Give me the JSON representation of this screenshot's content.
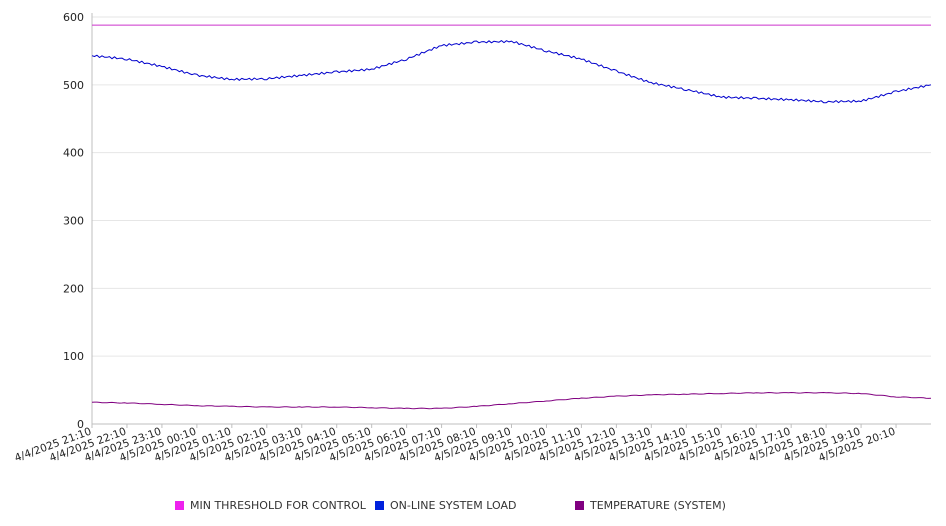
{
  "chart_data": {
    "type": "line",
    "title": "",
    "xlabel": "",
    "ylabel": "",
    "ylim": [
      0,
      600
    ],
    "y_ticks": [
      "0",
      "100",
      "200",
      "300",
      "400",
      "500",
      "600"
    ],
    "x_tick_labels": [
      "4/4/2025 21:10",
      "4/4/2025 22:10",
      "4/4/2025 23:10",
      "4/5/2025 00:10",
      "4/5/2025 01:10",
      "4/5/2025 02:10",
      "4/5/2025 03:10",
      "4/5/2025 04:10",
      "4/5/2025 05:10",
      "4/5/2025 06:10",
      "4/5/2025 07:10",
      "4/5/2025 08:10",
      "4/5/2025 09:10",
      "4/5/2025 10:10",
      "4/5/2025 11:10",
      "4/5/2025 12:10",
      "4/5/2025 13:10",
      "4/5/2025 14:10",
      "4/5/2025 15:10",
      "4/5/2025 16:10",
      "4/5/2025 17:10",
      "4/5/2025 18:10",
      "4/5/2025 19:10",
      "4/5/2025 20:10"
    ],
    "grid": true,
    "legend_position": "bottom",
    "x": [
      "4/4/2025 21:10",
      "4/4/2025 22:10",
      "4/4/2025 23:10",
      "4/5/2025 00:10",
      "4/5/2025 01:10",
      "4/5/2025 02:10",
      "4/5/2025 03:10",
      "4/5/2025 04:10",
      "4/5/2025 05:10",
      "4/5/2025 06:10",
      "4/5/2025 07:10",
      "4/5/2025 08:10",
      "4/5/2025 09:10",
      "4/5/2025 10:10",
      "4/5/2025 11:10",
      "4/5/2025 12:10",
      "4/5/2025 13:10",
      "4/5/2025 14:10",
      "4/5/2025 15:10",
      "4/5/2025 16:10",
      "4/5/2025 17:10",
      "4/5/2025 18:10",
      "4/5/2025 19:10",
      "4/5/2025 20:10",
      "4/5/2025 21:10"
    ],
    "series": [
      {
        "name": "MIN THRESHOLD FOR CONTROL",
        "color": "#cc33cc",
        "values": [
          588,
          588,
          588,
          588,
          588,
          588,
          588,
          588,
          588,
          588,
          588,
          588,
          588,
          588,
          588,
          588,
          588,
          588,
          588,
          588,
          588,
          588,
          588,
          588,
          588
        ]
      },
      {
        "name": "ON-LINE SYSTEM LOAD",
        "color": "#0000cc",
        "values": [
          543,
          538,
          527,
          514,
          508,
          509,
          514,
          519,
          523,
          538,
          558,
          563,
          564,
          550,
          538,
          520,
          503,
          493,
          482,
          480,
          478,
          475,
          476,
          490,
          500
        ]
      },
      {
        "name": "TEMPERATURE (SYSTEM)",
        "color": "#800080",
        "values": [
          32,
          31,
          29,
          27,
          26,
          25,
          25,
          25,
          24,
          23,
          23,
          26,
          30,
          34,
          38,
          41,
          43,
          44,
          45,
          46,
          46,
          46,
          45,
          40,
          38
        ]
      }
    ]
  },
  "legend": {
    "items": [
      {
        "label": "MIN THRESHOLD FOR CONTROL",
        "color": "#ee22ee"
      },
      {
        "label": "ON-LINE SYSTEM LOAD",
        "color": "#0022dd"
      },
      {
        "label": "TEMPERATURE (SYSTEM)",
        "color": "#800080"
      }
    ]
  }
}
